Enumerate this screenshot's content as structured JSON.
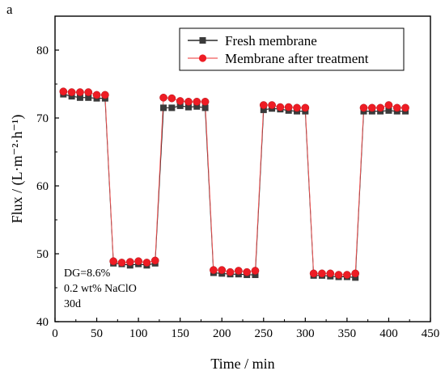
{
  "panel_label": "a",
  "chart_data": {
    "type": "line",
    "xlabel": "Time / min",
    "ylabel": "Flux / (L·m⁻²·h⁻¹)",
    "xlim": [
      0,
      450
    ],
    "ylim": [
      40,
      85
    ],
    "xticks": [
      0,
      50,
      100,
      150,
      200,
      250,
      300,
      350,
      400,
      450
    ],
    "yticks": [
      40,
      50,
      60,
      70,
      80
    ],
    "legend_position": "top-right",
    "series": [
      {
        "name": "Fresh membrane",
        "marker": "square",
        "color": "#3a3a3a",
        "line_color": "#000000",
        "x": [
          10,
          20,
          30,
          40,
          50,
          60,
          70,
          80,
          90,
          100,
          110,
          120,
          130,
          140,
          150,
          160,
          170,
          180,
          190,
          200,
          210,
          220,
          230,
          240,
          250,
          260,
          270,
          280,
          290,
          300,
          310,
          320,
          330,
          340,
          350,
          360,
          370,
          380,
          390,
          400,
          410,
          420
        ],
        "values": [
          73.5,
          73.2,
          73.0,
          73.0,
          72.9,
          72.9,
          48.6,
          48.5,
          48.3,
          48.5,
          48.3,
          48.6,
          71.5,
          71.5,
          71.8,
          71.6,
          71.7,
          71.5,
          47.2,
          47.1,
          47.0,
          47.0,
          46.9,
          46.9,
          71.2,
          71.4,
          71.3,
          71.1,
          71.0,
          71.0,
          46.8,
          46.8,
          46.7,
          46.6,
          46.6,
          46.5,
          71.0,
          71.0,
          71.0,
          71.1,
          71.0,
          71.0
        ]
      },
      {
        "name": "Membrane after treatment",
        "marker": "circle",
        "color": "#ee1c24",
        "line_color": "#f15a5a",
        "x": [
          10,
          20,
          30,
          40,
          50,
          60,
          70,
          80,
          90,
          100,
          110,
          120,
          130,
          140,
          150,
          160,
          170,
          180,
          190,
          200,
          210,
          220,
          230,
          240,
          250,
          260,
          270,
          280,
          290,
          300,
          310,
          320,
          330,
          340,
          350,
          360,
          370,
          380,
          390,
          400,
          410,
          420
        ],
        "values": [
          73.9,
          73.8,
          73.8,
          73.8,
          73.4,
          73.4,
          48.9,
          48.7,
          48.8,
          48.9,
          48.7,
          49.0,
          73.0,
          72.9,
          72.5,
          72.4,
          72.4,
          72.4,
          47.6,
          47.6,
          47.3,
          47.5,
          47.3,
          47.5,
          71.9,
          71.9,
          71.6,
          71.6,
          71.5,
          71.5,
          47.1,
          47.1,
          47.1,
          46.9,
          46.9,
          47.1,
          71.5,
          71.5,
          71.5,
          71.9,
          71.5,
          71.5
        ]
      }
    ],
    "annotations": [
      "DG=8.6%",
      "0.2 wt% NaClO",
      "30d"
    ]
  }
}
